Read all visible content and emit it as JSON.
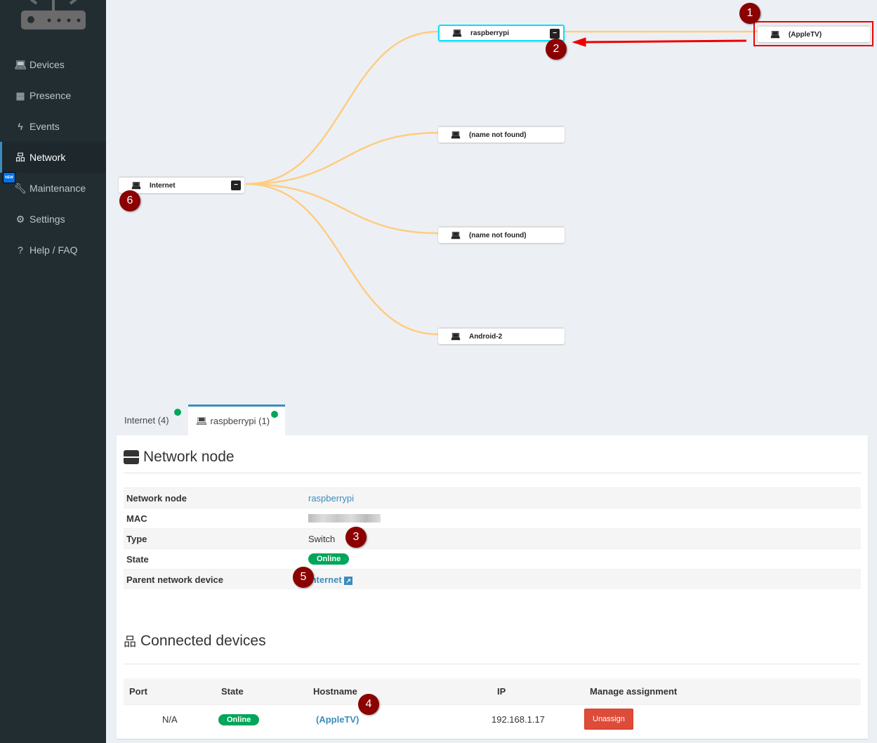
{
  "sidebar": {
    "items": [
      {
        "label": "Devices",
        "icon": "laptop-icon"
      },
      {
        "label": "Presence",
        "icon": "calendar-icon"
      },
      {
        "label": "Events",
        "icon": "bolt-icon"
      },
      {
        "label": "Network",
        "icon": "sitemap-icon",
        "active": true
      },
      {
        "label": "Maintenance",
        "icon": "wrench-icon"
      },
      {
        "label": "Settings",
        "icon": "gear-icon"
      },
      {
        "label": "Help / FAQ",
        "icon": "question-icon"
      }
    ],
    "new_badge": "NEW"
  },
  "graph": {
    "root": {
      "label": "Internet"
    },
    "children": [
      {
        "label": "raspberrypi"
      },
      {
        "label": "(name not found)"
      },
      {
        "label": "(name not found)"
      },
      {
        "label": "Android-2"
      }
    ],
    "leaf": {
      "label": "(AppleTV)"
    },
    "link_color": "#ffcc80",
    "selected_color": "#00e5ff"
  },
  "markers": [
    "1",
    "2",
    "3",
    "4",
    "5",
    "6"
  ],
  "tabs": [
    {
      "label": "Internet (4)"
    },
    {
      "label": "raspberrypi (1)",
      "active": true
    }
  ],
  "node_section": {
    "title": "Network node",
    "rows": [
      {
        "key": "Network node",
        "value": "raspberrypi"
      },
      {
        "key": "MAC",
        "value": ""
      },
      {
        "key": "Type",
        "value": "Switch"
      },
      {
        "key": "State",
        "value": "Online"
      },
      {
        "key": "Parent network device",
        "value": "Internet"
      }
    ]
  },
  "connected": {
    "title": "Connected devices",
    "columns": [
      "Port",
      "State",
      "Hostname",
      "IP",
      "Manage assignment"
    ],
    "rows": [
      {
        "port": "N/A",
        "state": "Online",
        "hostname": "(AppleTV)",
        "ip": "192.168.1.17",
        "action": "Unassign"
      }
    ]
  }
}
